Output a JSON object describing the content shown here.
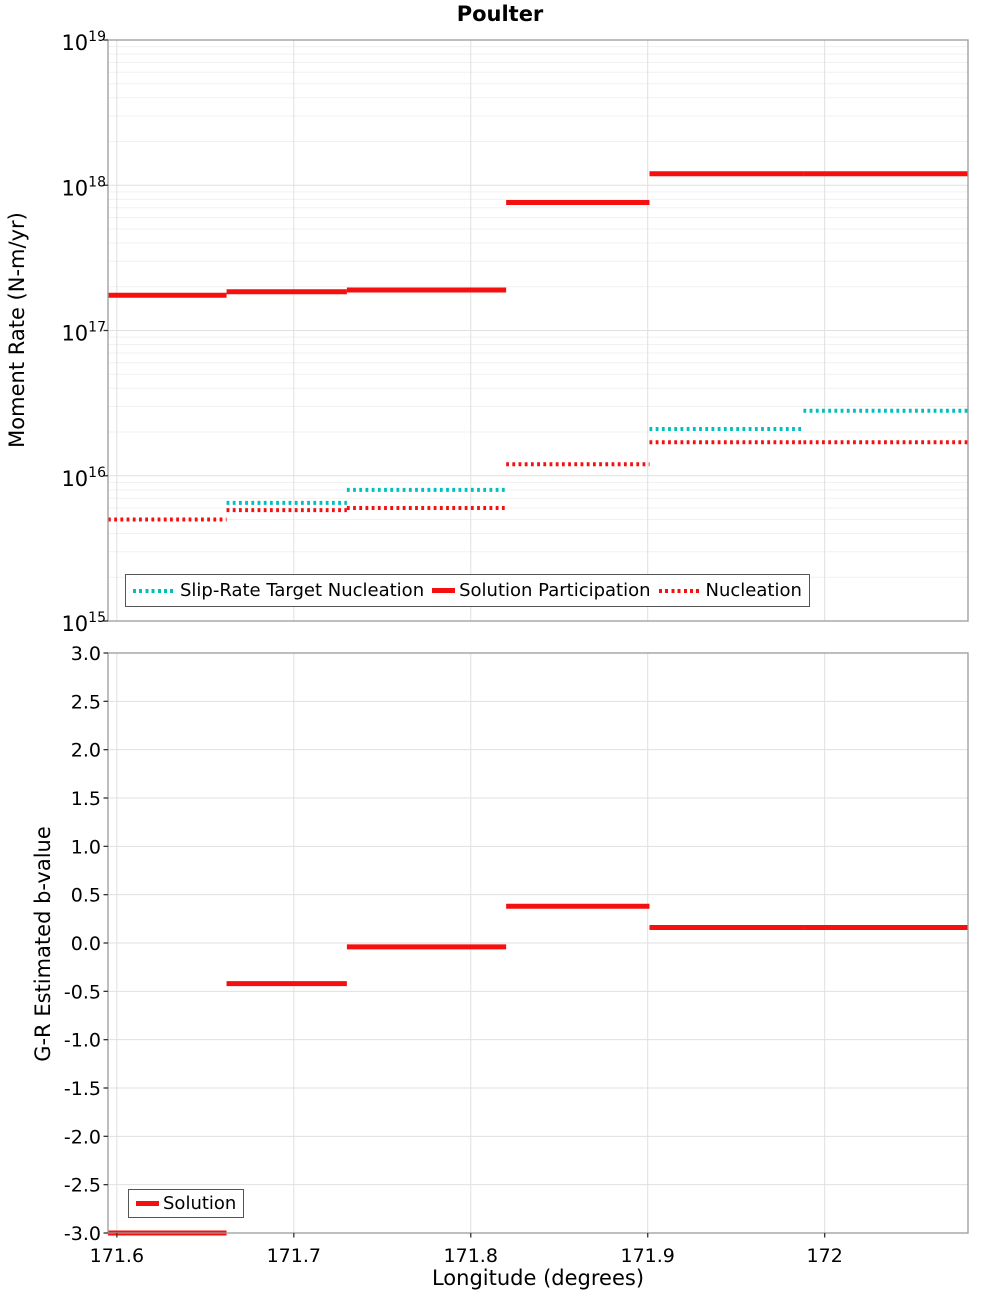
{
  "title": "Poulter",
  "colors": {
    "red": "#f50f0f",
    "cyan": "#00bfbf",
    "grid_major": "#e0e0e0",
    "grid_minor": "#f1f1f1",
    "frame": "#9a9a9a",
    "tick": "#333333"
  },
  "x_axis": {
    "label": "Longitude (degrees)",
    "range": [
      171.595,
      172.081
    ],
    "tick_values": [
      171.6,
      171.7,
      171.8,
      171.9,
      172.0
    ],
    "tick_labels": [
      "171.6",
      "171.7",
      "171.8",
      "171.9",
      "172"
    ]
  },
  "section_edges": [
    171.595,
    171.662,
    171.73,
    171.82,
    171.901,
    171.988,
    172.081
  ],
  "chart_data": [
    {
      "type": "step-line",
      "title": "Poulter",
      "ylabel": "Moment Rate (N-m/yr)",
      "yscale": "log",
      "ylim": [
        1000000000000000.0,
        1e+19
      ],
      "ytick_exponents": [
        "19",
        "18",
        "17",
        "16",
        "15"
      ],
      "grid": "major+minor",
      "legend": {
        "position": "bottom-left",
        "items": [
          {
            "label": "Slip-Rate Target Nucleation",
            "style": "dotted",
            "color_key": "cyan"
          },
          {
            "label": "Solution Participation",
            "style": "solid",
            "color_key": "red"
          },
          {
            "label": "Nucleation",
            "style": "dotted",
            "color_key": "red"
          }
        ]
      },
      "series": [
        {
          "name": "Slip-Rate Target Nucleation",
          "style": "dotted",
          "color_key": "cyan",
          "values": [
            null,
            6500000000000000.0,
            8000000000000000.0,
            null,
            2.1e+16,
            2.8e+16
          ]
        },
        {
          "name": "Solution Participation",
          "style": "solid",
          "color_key": "red",
          "values": [
            1.75e+17,
            1.85e+17,
            1.9e+17,
            7.6e+17,
            1.2e+18,
            1.2e+18
          ]
        },
        {
          "name": "Nucleation",
          "style": "dotted",
          "color_key": "red",
          "values": [
            5000000000000000.0,
            5800000000000000.0,
            6000000000000000.0,
            1.2e+16,
            1.7e+16,
            1.7e+16
          ]
        }
      ]
    },
    {
      "type": "step-line",
      "ylabel": "G-R Estimated b-value",
      "yscale": "linear",
      "ylim": [
        -3.0,
        3.0
      ],
      "ytick_values": [
        3.0,
        2.5,
        2.0,
        1.5,
        1.0,
        0.5,
        0.0,
        -0.5,
        -1.0,
        -1.5,
        -2.0,
        -2.5,
        -3.0
      ],
      "ytick_labels": [
        "3.0",
        "2.5",
        "2.0",
        "1.5",
        "1.0",
        "0.5",
        "0.0",
        "-0.5",
        "-1.0",
        "-1.5",
        "-2.0",
        "-2.5",
        "-3.0"
      ],
      "grid": "major",
      "legend": {
        "position": "bottom-left",
        "items": [
          {
            "label": "Solution",
            "style": "solid",
            "color_key": "red"
          }
        ]
      },
      "series": [
        {
          "name": "Solution",
          "style": "solid",
          "color_key": "red",
          "values": [
            -3.0,
            -0.42,
            -0.04,
            0.38,
            0.16,
            0.16
          ]
        }
      ]
    }
  ]
}
